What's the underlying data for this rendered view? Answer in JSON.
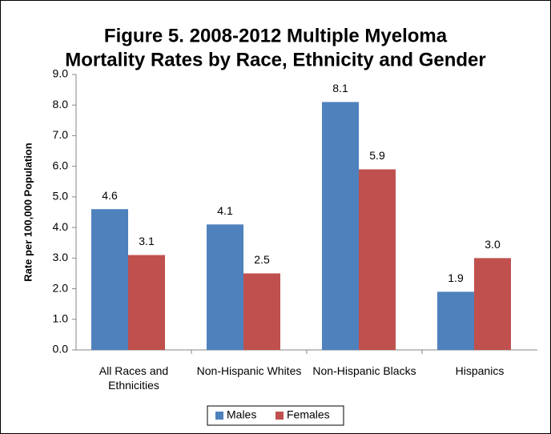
{
  "chart_data": {
    "type": "bar",
    "title": [
      "Figure 5.  2008-2012 Multiple Myeloma",
      "Mortality Rates by Race, Ethnicity and Gender"
    ],
    "y_label": "Rate per 100,000 Population",
    "categories": [
      "All Races and Ethnicities",
      "Non-Hispanic Whites",
      "Non-Hispanic Blacks",
      "Hispanics"
    ],
    "series": [
      {
        "name": "Males",
        "color": "#4f81bd",
        "values": [
          4.6,
          4.1,
          8.1,
          1.9
        ],
        "value_labels": [
          "4.6",
          "4.1",
          "8.1",
          "1.9"
        ]
      },
      {
        "name": "Females",
        "color": "#c0504d",
        "values": [
          3.1,
          2.5,
          5.9,
          3.0
        ],
        "value_labels": [
          "3.1",
          "2.5",
          "5.9",
          "3.0"
        ]
      }
    ],
    "ylim": [
      0,
      9
    ],
    "yticks": [
      {
        "value": 0,
        "label": "0.0"
      },
      {
        "value": 1,
        "label": "1.0"
      },
      {
        "value": 2,
        "label": "2.0"
      },
      {
        "value": 3,
        "label": "3.0"
      },
      {
        "value": 4,
        "label": "4.0"
      },
      {
        "value": 5,
        "label": "5.0"
      },
      {
        "value": 6,
        "label": "6.0"
      },
      {
        "value": 7,
        "label": "7.0"
      },
      {
        "value": 8,
        "label": "8.0"
      },
      {
        "value": 9,
        "label": "9.0"
      }
    ],
    "legend": "bottom"
  }
}
